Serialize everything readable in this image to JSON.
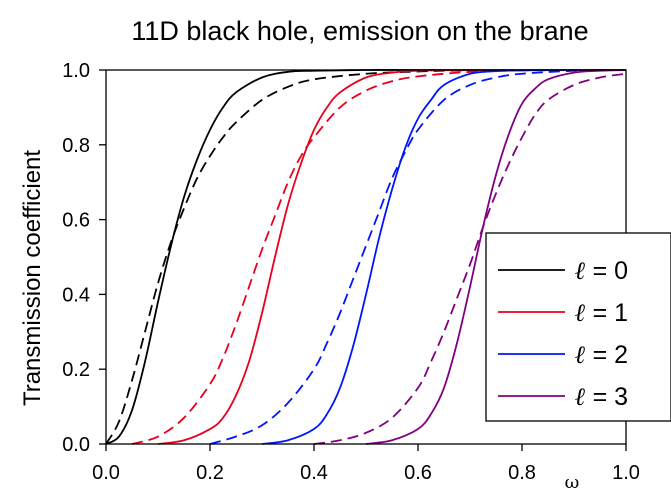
{
  "chart_data": {
    "type": "line",
    "title": "11D black hole, emission on the brane",
    "xlabel": "ω",
    "ylabel": "Transmission coefficient",
    "xlim": [
      0,
      1
    ],
    "ylim": [
      0,
      1
    ],
    "x_ticks": [
      "0.0",
      "0.2",
      "0.4",
      "0.6",
      "0.8",
      "1.0"
    ],
    "y_ticks": [
      "0.0",
      "0.2",
      "0.4",
      "0.6",
      "0.8",
      "1.0"
    ],
    "grid": false,
    "legend_position": "lower-right",
    "legend": [
      {
        "symbol": "ℓ",
        "text": " = 0",
        "color": "#000000"
      },
      {
        "symbol": "ℓ",
        "text": " = 1",
        "color": "#e8001c"
      },
      {
        "symbol": "ℓ",
        "text": " = 2",
        "color": "#0015ff"
      },
      {
        "symbol": "ℓ",
        "text": " = 3",
        "color": "#800080"
      }
    ],
    "series": [
      {
        "color": "#000000",
        "style": "solid",
        "x": [
          0,
          0.025,
          0.05,
          0.075,
          0.1,
          0.125,
          0.15,
          0.175,
          0.2,
          0.225,
          0.25,
          0.3,
          0.35,
          0.4,
          0.5,
          0.6,
          1.0
        ],
        "y": [
          0,
          0.02,
          0.09,
          0.22,
          0.38,
          0.53,
          0.66,
          0.76,
          0.84,
          0.9,
          0.94,
          0.98,
          0.995,
          0.998,
          1.0,
          1.0,
          1.0
        ]
      },
      {
        "color": "#000000",
        "style": "dashed",
        "x": [
          0,
          0.025,
          0.05,
          0.075,
          0.1,
          0.125,
          0.15,
          0.175,
          0.2,
          0.225,
          0.25,
          0.3,
          0.35,
          0.4,
          0.5,
          0.6,
          0.7,
          1.0
        ],
        "y": [
          0,
          0.06,
          0.17,
          0.3,
          0.43,
          0.54,
          0.63,
          0.71,
          0.77,
          0.82,
          0.86,
          0.92,
          0.955,
          0.975,
          0.99,
          0.996,
          0.999,
          1.0
        ]
      },
      {
        "color": "#e8001c",
        "style": "solid",
        "x": [
          0.1,
          0.15,
          0.2,
          0.225,
          0.25,
          0.275,
          0.3,
          0.325,
          0.35,
          0.375,
          0.4,
          0.425,
          0.45,
          0.5,
          0.55,
          0.6,
          0.7,
          1.0
        ],
        "y": [
          0.0,
          0.01,
          0.04,
          0.07,
          0.13,
          0.22,
          0.35,
          0.5,
          0.64,
          0.75,
          0.84,
          0.9,
          0.94,
          0.98,
          0.993,
          0.998,
          1.0,
          1.0
        ]
      },
      {
        "color": "#e8001c",
        "style": "dashed",
        "x": [
          0.05,
          0.1,
          0.15,
          0.2,
          0.225,
          0.25,
          0.275,
          0.3,
          0.325,
          0.35,
          0.375,
          0.4,
          0.45,
          0.5,
          0.55,
          0.6,
          0.7,
          0.8,
          1.0
        ],
        "y": [
          0.0,
          0.02,
          0.07,
          0.16,
          0.23,
          0.32,
          0.42,
          0.52,
          0.61,
          0.7,
          0.77,
          0.82,
          0.9,
          0.945,
          0.97,
          0.983,
          0.995,
          0.999,
          1.0
        ]
      },
      {
        "color": "#0015ff",
        "style": "solid",
        "x": [
          0.3,
          0.35,
          0.4,
          0.425,
          0.45,
          0.475,
          0.5,
          0.525,
          0.55,
          0.575,
          0.6,
          0.625,
          0.65,
          0.7,
          0.75,
          0.8,
          0.9,
          1.0
        ],
        "y": [
          0.0,
          0.01,
          0.04,
          0.08,
          0.15,
          0.26,
          0.4,
          0.55,
          0.68,
          0.79,
          0.87,
          0.92,
          0.96,
          0.99,
          0.997,
          0.999,
          1.0,
          1.0
        ]
      },
      {
        "color": "#0015ff",
        "style": "dashed",
        "x": [
          0.2,
          0.25,
          0.3,
          0.35,
          0.4,
          0.425,
          0.45,
          0.475,
          0.5,
          0.525,
          0.55,
          0.575,
          0.6,
          0.65,
          0.7,
          0.75,
          0.8,
          0.9,
          1.0
        ],
        "y": [
          0.0,
          0.02,
          0.05,
          0.11,
          0.2,
          0.27,
          0.35,
          0.44,
          0.53,
          0.62,
          0.71,
          0.78,
          0.84,
          0.92,
          0.96,
          0.98,
          0.99,
          0.998,
          1.0
        ]
      },
      {
        "color": "#800080",
        "style": "solid",
        "x": [
          0.5,
          0.55,
          0.6,
          0.625,
          0.65,
          0.675,
          0.7,
          0.725,
          0.75,
          0.775,
          0.8,
          0.825,
          0.85,
          0.9,
          0.95,
          1.0
        ],
        "y": [
          0.0,
          0.01,
          0.04,
          0.08,
          0.15,
          0.27,
          0.42,
          0.58,
          0.72,
          0.83,
          0.91,
          0.95,
          0.975,
          0.993,
          0.998,
          1.0
        ]
      },
      {
        "color": "#800080",
        "style": "dashed",
        "x": [
          0.4,
          0.45,
          0.5,
          0.55,
          0.6,
          0.625,
          0.65,
          0.675,
          0.7,
          0.725,
          0.75,
          0.775,
          0.8,
          0.825,
          0.85,
          0.9,
          0.95,
          1.0
        ],
        "y": [
          0.0,
          0.01,
          0.03,
          0.07,
          0.15,
          0.22,
          0.3,
          0.39,
          0.48,
          0.58,
          0.67,
          0.75,
          0.82,
          0.88,
          0.92,
          0.96,
          0.98,
          0.99
        ]
      }
    ]
  }
}
